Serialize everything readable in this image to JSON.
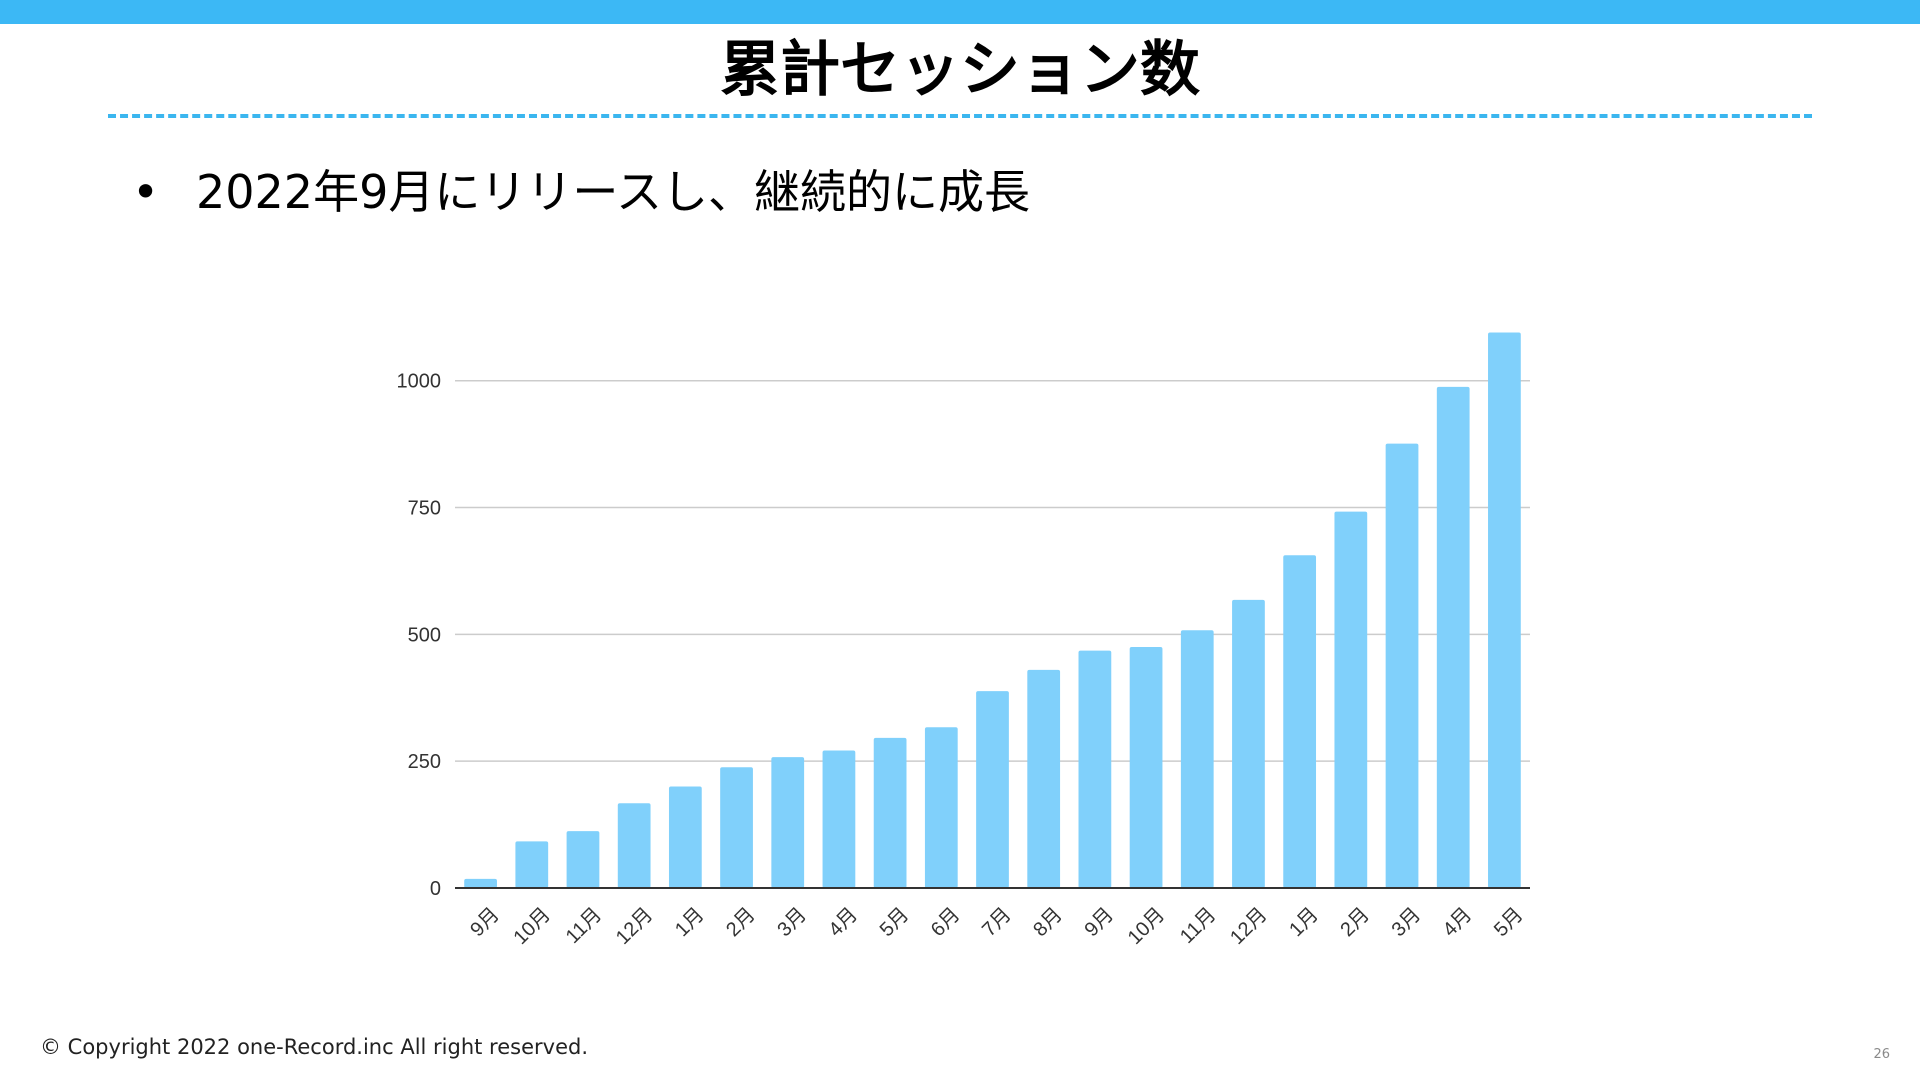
{
  "slide": {
    "title": "累計セッション数",
    "bullet": "•",
    "bullet_text": "2022年9月にリリースし、継続的に成長",
    "copyright": "© Copyright 2022 one-Record.inc All right reserved.",
    "page_number": "26"
  },
  "colors": {
    "top_bar": "#3cb8f5",
    "divider": "#3bb6ef",
    "bar": "#80d0fb",
    "grid": "#cccccc",
    "axis": "#333333",
    "tick_label": "#333333"
  },
  "chart_data": {
    "type": "bar",
    "title": "",
    "xlabel": "",
    "ylabel": "",
    "categories": [
      "9月",
      "10月",
      "11月",
      "12月",
      "1月",
      "2月",
      "3月",
      "4月",
      "5月",
      "6月",
      "7月",
      "8月",
      "9月",
      "10月",
      "11月",
      "12月",
      "1月",
      "2月",
      "3月",
      "4月",
      "5月"
    ],
    "values": [
      18,
      92,
      112,
      167,
      200,
      238,
      258,
      271,
      296,
      317,
      388,
      430,
      468,
      475,
      508,
      568,
      656,
      742,
      876,
      988,
      1095
    ],
    "ylim": [
      0,
      1100
    ],
    "yticks": [
      0,
      250,
      500,
      750,
      1000
    ],
    "grid": true,
    "legend": "none"
  }
}
